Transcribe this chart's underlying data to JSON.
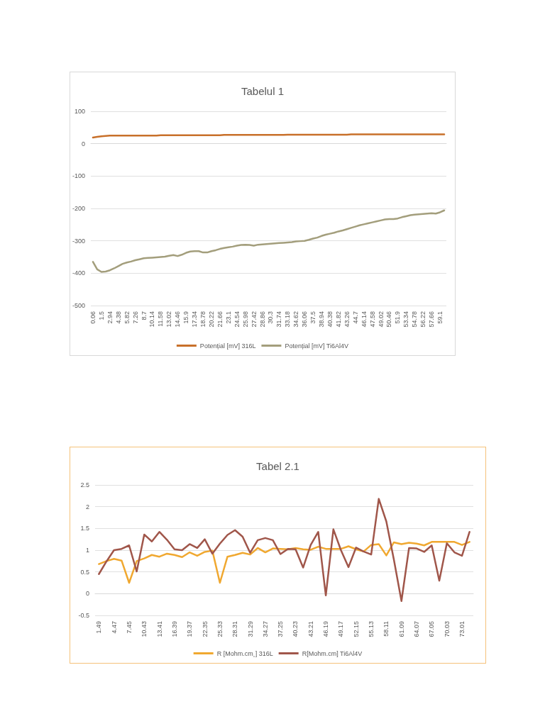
{
  "chart_data": [
    {
      "type": "line",
      "title": "Tabelul 1",
      "categories": [
        "0.06",
        null,
        "1.5",
        null,
        "2.94",
        null,
        "4.38",
        null,
        "5.82",
        null,
        "7.26",
        null,
        "8.7",
        null,
        "10.14",
        null,
        "11.58",
        null,
        "13.02",
        null,
        "14.46",
        null,
        "15.9",
        null,
        "17.34",
        null,
        "18.78",
        null,
        "20.22",
        null,
        "21.66",
        null,
        "23.1",
        null,
        "24.54",
        null,
        "25.98",
        null,
        "27.42",
        null,
        "28.86",
        null,
        "30.3",
        null,
        "31.74",
        null,
        "33.18",
        null,
        "34.62",
        null,
        "36.06",
        null,
        "37.5",
        null,
        "38.94",
        null,
        "40.38",
        null,
        "41.82",
        null,
        "43.26",
        null,
        "44.7",
        null,
        "46.14",
        null,
        "47.58",
        null,
        "49.02",
        null,
        "50.46",
        null,
        "51.9",
        null,
        "53.34",
        null,
        "54.78",
        null,
        "56.22",
        null,
        "57.66",
        null,
        "59.1",
        null
      ],
      "series": [
        {
          "name": "Potențial [mV] 316L",
          "color": "#c8702a",
          "values": [
            19,
            21,
            23,
            24,
            25,
            25,
            25,
            25,
            25,
            25,
            25,
            25,
            25,
            25,
            25,
            25,
            26,
            26,
            26,
            26,
            26,
            26,
            26,
            26,
            26,
            26,
            26,
            26,
            26,
            26,
            26,
            27,
            27,
            27,
            27,
            27,
            27,
            27,
            27,
            27,
            27,
            27,
            27,
            27,
            27,
            27,
            28,
            28,
            28,
            28,
            28,
            28,
            28,
            28,
            28,
            28,
            28,
            28,
            28,
            28,
            28,
            29,
            29,
            29,
            29,
            29,
            29,
            29,
            29,
            29,
            29,
            29,
            29,
            29,
            29,
            29,
            29,
            29,
            29,
            29,
            29,
            29,
            29,
            29
          ]
        },
        {
          "name": "Potențial [mV] Ti6Al4V",
          "color": "#a39e7c",
          "values": [
            -365,
            -388,
            -396,
            -395,
            -391,
            -385,
            -378,
            -371,
            -367,
            -364,
            -360,
            -357,
            -354,
            -353,
            -352,
            -351,
            -350,
            -349,
            -346,
            -344,
            -347,
            -343,
            -337,
            -333,
            -332,
            -332,
            -336,
            -336,
            -332,
            -329,
            -325,
            -322,
            -320,
            -318,
            -315,
            -313,
            -312,
            -313,
            -315,
            -312,
            -311,
            -310,
            -309,
            -308,
            -307,
            -306,
            -305,
            -304,
            -302,
            -301,
            -300,
            -297,
            -293,
            -290,
            -285,
            -281,
            -278,
            -275,
            -271,
            -268,
            -264,
            -260,
            -256,
            -252,
            -249,
            -246,
            -243,
            -240,
            -237,
            -234,
            -233,
            -233,
            -231,
            -227,
            -224,
            -221,
            -219,
            -218,
            -217,
            -216,
            -215,
            -216,
            -212,
            -206
          ]
        }
      ],
      "ylim": [
        -500,
        100
      ],
      "yticks": [
        -500,
        -400,
        -300,
        -200,
        -100,
        0,
        100
      ],
      "grid": "y",
      "legend": "bottom",
      "marker": "none"
    },
    {
      "type": "line",
      "title": "Tabel 2.1",
      "categories": [
        "1.49",
        null,
        "4.47",
        null,
        "7.45",
        null,
        "10.43",
        null,
        "13.41",
        null,
        "16.39",
        null,
        "19.37",
        null,
        "22.35",
        null,
        "25.33",
        null,
        "28.31",
        null,
        "31.29",
        null,
        "34.27",
        null,
        "37.25",
        null,
        "40.23",
        null,
        "43.21",
        null,
        "46.19",
        null,
        "49.17",
        null,
        "52.15",
        null,
        "55.13",
        null,
        "58.11",
        null,
        "61.09",
        null,
        "64.07",
        null,
        "67.05",
        null,
        "70.03",
        null,
        "73.01",
        null
      ],
      "series": [
        {
          "name": "R [Mohm.cm¸] 316L",
          "color": "#f0a830",
          "values": [
            0.68,
            0.75,
            0.8,
            0.76,
            0.25,
            0.75,
            0.81,
            0.89,
            0.85,
            0.92,
            0.89,
            0.84,
            0.95,
            0.87,
            0.96,
            0.99,
            0.25,
            0.85,
            0.89,
            0.94,
            0.9,
            1.05,
            0.95,
            1.04,
            1.03,
            1.02,
            1.05,
            1.02,
            1.01,
            1.08,
            1.03,
            1.03,
            1.03,
            1.09,
            1.02,
            0.97,
            1.12,
            1.14,
            0.88,
            1.18,
            1.14,
            1.17,
            1.15,
            1.11,
            1.19,
            1.19,
            1.19,
            1.19,
            1.12,
            1.19
          ]
        },
        {
          "name": "R[Mohm.cm] Ti6Al4V",
          "color": "#a0564a",
          "values": [
            0.45,
            0.74,
            1.0,
            1.03,
            1.11,
            0.51,
            1.36,
            1.2,
            1.42,
            1.24,
            1.02,
            1.0,
            1.14,
            1.05,
            1.25,
            0.92,
            1.15,
            1.35,
            1.46,
            1.31,
            0.94,
            1.23,
            1.28,
            1.23,
            0.91,
            1.03,
            1.02,
            0.6,
            1.12,
            1.42,
            -0.04,
            1.48,
            1.0,
            0.61,
            1.06,
            0.97,
            0.9,
            2.18,
            1.66,
            0.78,
            -0.17,
            1.05,
            1.04,
            0.96,
            1.11,
            0.3,
            1.16,
            0.95,
            0.87,
            1.42
          ]
        }
      ],
      "ylim": [
        -0.5,
        2.5
      ],
      "yticks": [
        -0.5,
        0,
        0.5,
        1,
        1.5,
        2,
        2.5
      ],
      "grid": "y",
      "legend": "bottom",
      "marker": "none"
    }
  ]
}
